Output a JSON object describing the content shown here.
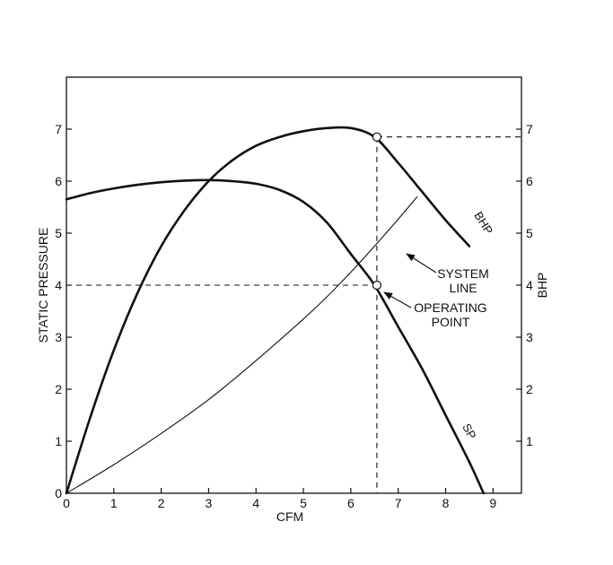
{
  "chart_data": {
    "type": "line",
    "xlabel": "CFM",
    "ylabel": "STATIC PRESSURE",
    "y2label": "BHP",
    "xlim": [
      0,
      9.6
    ],
    "ylim": [
      0,
      8
    ],
    "x_ticks": [
      0,
      1,
      2,
      3,
      4,
      5,
      6,
      7,
      8,
      9
    ],
    "y_ticks": [
      0,
      1,
      2,
      3,
      4,
      5,
      6,
      7
    ],
    "y2_ticks": [
      1,
      2,
      3,
      4,
      5,
      6,
      7
    ],
    "grid": false,
    "series": [
      {
        "name": "SP",
        "x": [
          0,
          0.5,
          1,
          1.5,
          2,
          2.5,
          3,
          3.5,
          4,
          4.5,
          5,
          5.5,
          6,
          6.5,
          7,
          7.5,
          8,
          8.5,
          8.8
        ],
        "y": [
          5.65,
          5.77,
          5.86,
          5.93,
          5.98,
          6.01,
          6.02,
          6.0,
          5.95,
          5.83,
          5.6,
          5.2,
          4.6,
          4.0,
          3.2,
          2.4,
          1.5,
          0.6,
          0.0
        ]
      },
      {
        "name": "BHP",
        "x": [
          0,
          0.5,
          1,
          1.5,
          2,
          2.5,
          3,
          3.5,
          4,
          4.5,
          5,
          5.5,
          6,
          6.5,
          7,
          7.5,
          8,
          8.5
        ],
        "y": [
          0,
          1.45,
          2.75,
          3.85,
          4.75,
          5.45,
          6.0,
          6.4,
          6.68,
          6.85,
          6.96,
          7.02,
          7.02,
          6.85,
          6.35,
          5.8,
          5.25,
          4.75
        ]
      },
      {
        "name": "SYSTEM LINE",
        "x": [
          0,
          1,
          2,
          3,
          4,
          5,
          5.5,
          6,
          6.5,
          7,
          7.4
        ],
        "y": [
          0,
          0.55,
          1.15,
          1.8,
          2.55,
          3.35,
          3.78,
          4.25,
          4.75,
          5.27,
          5.7
        ]
      }
    ],
    "operating_point": {
      "x": 6.55,
      "y": 4.0,
      "bhp": 6.85
    },
    "annotations": {
      "system_line": [
        "SYSTEM",
        "LINE"
      ],
      "operating_point": [
        "OPERATING",
        "POINT"
      ],
      "sp_label": "SP",
      "bhp_label": "BHP"
    }
  }
}
